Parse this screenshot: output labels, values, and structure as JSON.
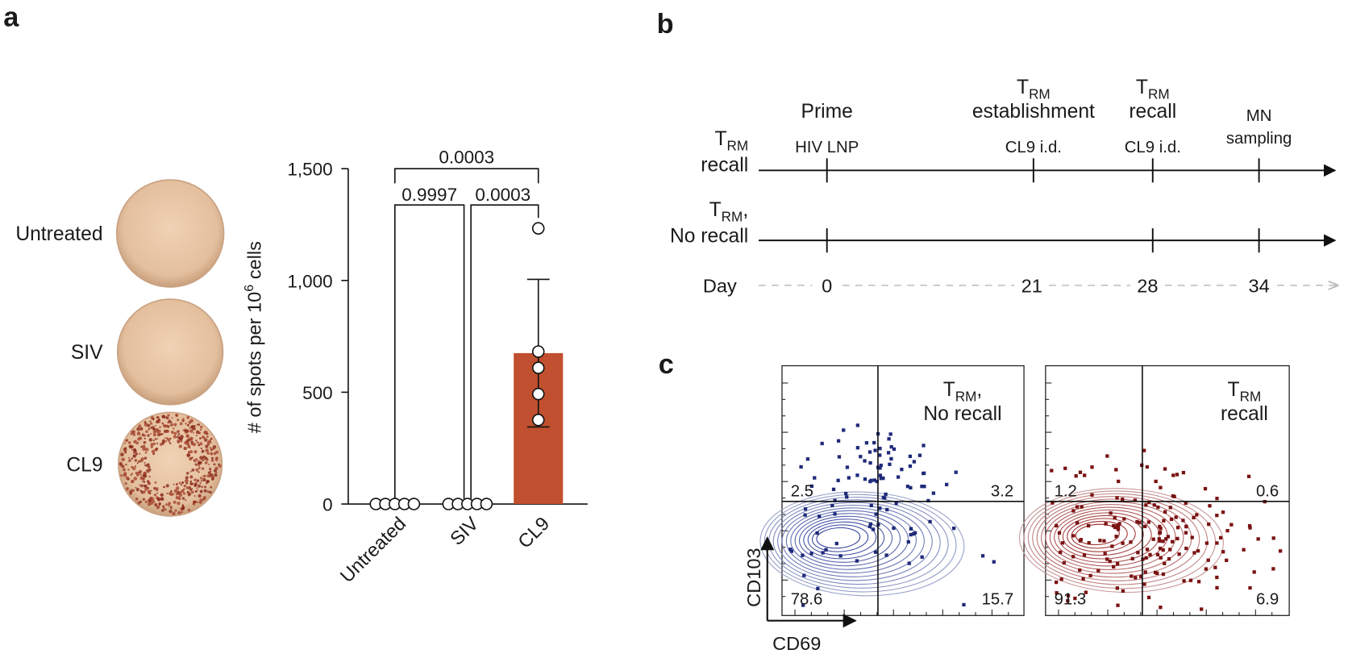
{
  "panel_labels": [
    "a",
    "b",
    "c"
  ],
  "wells": {
    "labels": [
      "Untreated",
      "SIV",
      "CL9"
    ]
  },
  "chart_data": {
    "type": "bar",
    "categories": [
      "Untreated",
      "SIV",
      "CL9"
    ],
    "values": [
      0,
      0,
      675
    ],
    "errors": [
      0,
      0,
      330
    ],
    "color": "#c0502f",
    "points": [
      [
        0,
        0,
        0,
        0,
        0
      ],
      [
        0,
        0,
        0,
        0,
        0
      ],
      [
        1233,
        682,
        609,
        492,
        376
      ]
    ],
    "y_label": {
      "text": "# of spots per 10",
      "sup": "6",
      "end": " cells"
    },
    "ylim": [
      0,
      1500
    ],
    "yticks": [
      0,
      500,
      {
        "value": 1000,
        "label": "1,000"
      },
      {
        "value": 1500,
        "label": "1,500"
      }
    ],
    "comparisons": [
      "0.0003",
      "0.9997",
      "0.0003"
    ]
  },
  "timeline": {
    "phases": [
      {
        "t": "Prime"
      },
      {
        "t": "T",
        "sub": "RM",
        "line2": "establishment"
      },
      {
        "t": "T",
        "sub": "RM",
        "line2": "recall"
      },
      {
        "t": "MN",
        "line2": "sampling"
      }
    ],
    "events": [
      "HIV LNP",
      "CL9 i.d.",
      "CL9 i.d."
    ],
    "rows": [
      {
        "t": "T",
        "sub": "RM",
        "line2": "recall"
      },
      {
        "t": "T",
        "sub": "RM",
        "suffix": ",",
        "line2": "No recall"
      }
    ],
    "day_label": "Day",
    "days": [
      0,
      21,
      28,
      34
    ]
  },
  "flow": {
    "plots": [
      {
        "title": {
          "t": "T",
          "sub": "RM",
          "suffix": ",",
          "line2": "No recall"
        },
        "quadrants": [
          2.5,
          3.2,
          78.6,
          15.7
        ]
      },
      {
        "title": {
          "t": "T",
          "sub": "RM",
          "line2": "recall"
        },
        "quadrants": [
          1.2,
          0.6,
          91.3,
          6.9
        ]
      }
    ],
    "y_axis": "CD103",
    "x_axis": "CD69"
  }
}
